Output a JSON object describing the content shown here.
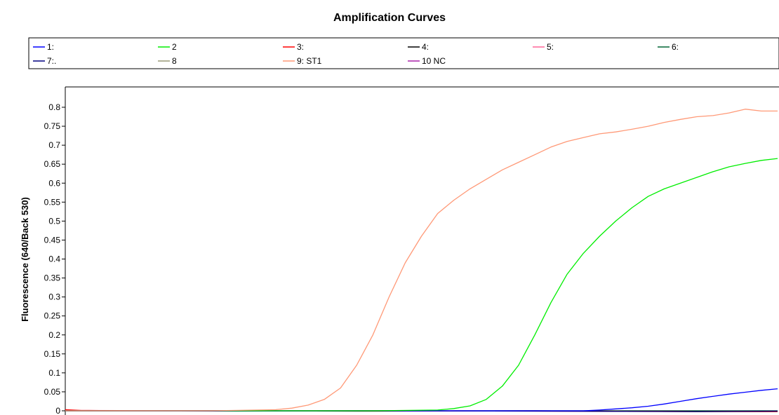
{
  "chart_data": {
    "type": "line",
    "title": "Amplification Curves",
    "xlabel": "",
    "ylabel": "Fluorescence (640/Back 530)",
    "ylim": [
      0,
      0.85
    ],
    "xlim": [
      1,
      45
    ],
    "y_ticks": [
      {
        "value": 0,
        "label": "0"
      },
      {
        "value": 0.05,
        "label": "0.05"
      },
      {
        "value": 0.1,
        "label": "0.1"
      },
      {
        "value": 0.15,
        "label": "0.15"
      },
      {
        "value": 0.2,
        "label": "0.2"
      },
      {
        "value": 0.25,
        "label": "0.25"
      },
      {
        "value": 0.3,
        "label": "0.3"
      },
      {
        "value": 0.35,
        "label": "0.35"
      },
      {
        "value": 0.4,
        "label": "0.4"
      },
      {
        "value": 0.45,
        "label": "0.45"
      },
      {
        "value": 0.5,
        "label": "0.5"
      },
      {
        "value": 0.55,
        "label": "0.55"
      },
      {
        "value": 0.6,
        "label": "0.6"
      },
      {
        "value": 0.65,
        "label": "0.65"
      },
      {
        "value": 0.7,
        "label": "0.7"
      },
      {
        "value": 0.75,
        "label": "0.75"
      },
      {
        "value": 0.8,
        "label": "0.8"
      }
    ],
    "grid": false,
    "legend_position": "top",
    "legend": [
      {
        "label": "1:",
        "color": "#0000ff"
      },
      {
        "label": "2",
        "color": "#00ee00"
      },
      {
        "label": "3:",
        "color": "#ff0000"
      },
      {
        "label": "4:",
        "color": "#000000"
      },
      {
        "label": "5:",
        "color": "#ff6699"
      },
      {
        "label": "6:",
        "color": "#006633"
      },
      {
        "label": "7:.",
        "color": "#000080"
      },
      {
        "label": "8",
        "color": "#999977"
      },
      {
        "label": "9: ST1",
        "color": "#ff9977"
      },
      {
        "label": "10 NC",
        "color": "#aa22aa"
      }
    ],
    "series": [
      {
        "name": "1:",
        "color": "#0000ff",
        "x": [
          1,
          5,
          10,
          15,
          20,
          25,
          30,
          33,
          34,
          35,
          36,
          37,
          38,
          39,
          40,
          41,
          42,
          43,
          44,
          45
        ],
        "y": [
          0,
          0,
          0,
          0,
          0,
          0,
          0,
          0,
          0.002,
          0.005,
          0.008,
          0.012,
          0.018,
          0.025,
          0.032,
          0.038,
          0.044,
          0.049,
          0.054,
          0.058
        ]
      },
      {
        "name": "2",
        "color": "#00ee00",
        "x": [
          1,
          10,
          20,
          24,
          25,
          26,
          27,
          28,
          29,
          30,
          31,
          32,
          33,
          34,
          35,
          36,
          37,
          38,
          39,
          40,
          41,
          42,
          43,
          44,
          45
        ],
        "y": [
          0,
          0,
          0,
          0.002,
          0.006,
          0.013,
          0.03,
          0.065,
          0.12,
          0.2,
          0.285,
          0.36,
          0.415,
          0.46,
          0.5,
          0.535,
          0.565,
          0.585,
          0.6,
          0.615,
          0.63,
          0.643,
          0.652,
          0.66,
          0.665
        ]
      },
      {
        "name": "3:",
        "color": "#ff0000",
        "x": [
          1,
          2,
          5,
          10,
          20,
          30,
          40,
          45
        ],
        "y": [
          0.003,
          0.001,
          0,
          0,
          0,
          -0.001,
          -0.002,
          -0.002
        ]
      },
      {
        "name": "4:",
        "color": "#000000",
        "x": [
          1,
          10,
          20,
          30,
          40,
          45
        ],
        "y": [
          0,
          0,
          -0.001,
          0,
          -0.002,
          -0.002
        ]
      },
      {
        "name": "5:",
        "color": "#ff6699",
        "x": [
          1,
          10,
          20,
          30,
          40,
          45
        ],
        "y": [
          0.001,
          0,
          -0.001,
          0,
          -0.002,
          -0.001
        ]
      },
      {
        "name": "6:",
        "color": "#006633",
        "x": [
          1,
          10,
          20,
          30,
          40,
          45
        ],
        "y": [
          0,
          0,
          0,
          0,
          0,
          0
        ]
      },
      {
        "name": "7:.",
        "color": "#000080",
        "x": [
          1,
          10,
          20,
          30,
          40,
          45
        ],
        "y": [
          0,
          -0.001,
          0,
          -0.001,
          -0.002,
          -0.001
        ]
      },
      {
        "name": "8",
        "color": "#999977",
        "x": [
          1,
          10,
          20,
          30,
          40,
          45
        ],
        "y": [
          0,
          0,
          0,
          0,
          0,
          0
        ]
      },
      {
        "name": "9: ST1",
        "color": "#ff9977",
        "x": [
          1,
          10,
          14,
          15,
          16,
          17,
          18,
          19,
          20,
          21,
          22,
          23,
          24,
          25,
          26,
          27,
          28,
          29,
          30,
          31,
          32,
          33,
          34,
          35,
          36,
          37,
          38,
          39,
          40,
          41,
          42,
          43,
          44,
          45
        ],
        "y": [
          0,
          0,
          0.003,
          0.007,
          0.015,
          0.03,
          0.06,
          0.12,
          0.2,
          0.3,
          0.39,
          0.46,
          0.52,
          0.555,
          0.585,
          0.61,
          0.635,
          0.655,
          0.675,
          0.695,
          0.71,
          0.72,
          0.73,
          0.735,
          0.742,
          0.75,
          0.76,
          0.768,
          0.775,
          0.778,
          0.785,
          0.795,
          0.79,
          0.79
        ]
      },
      {
        "name": "10 NC",
        "color": "#aa22aa",
        "x": [
          1,
          10,
          20,
          30,
          40,
          45
        ],
        "y": [
          0,
          0,
          0,
          0,
          0,
          0
        ]
      }
    ]
  }
}
